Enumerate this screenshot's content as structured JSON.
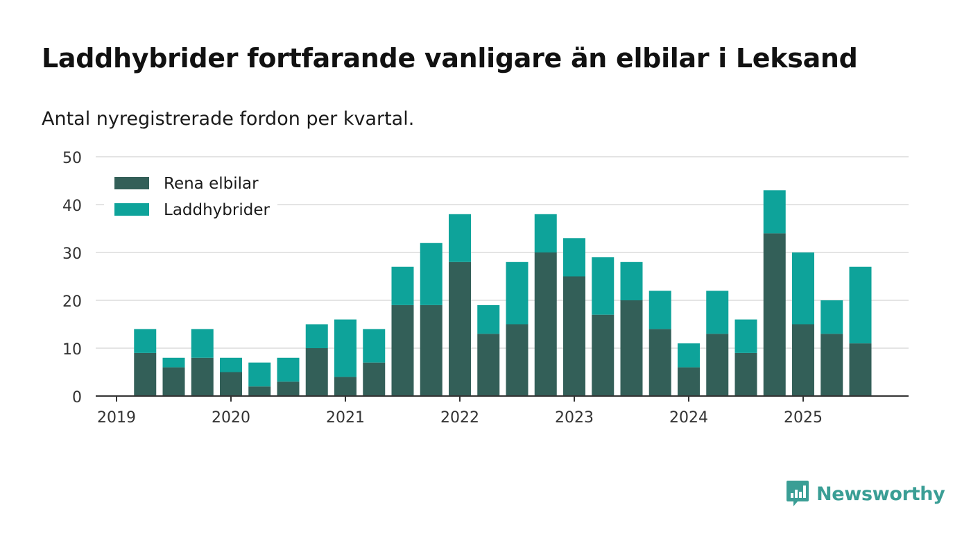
{
  "title": "Laddhybrider fortfarande vanligare än elbilar i Leksand",
  "subtitle": "Antal nyregistrerade fordon per kvartal.",
  "brand": "Newsworthy",
  "colors": {
    "rena_elbilar": "#335f58",
    "laddhybrider": "#0ea39a",
    "brand": "#3a9e95"
  },
  "chart_data": {
    "type": "bar",
    "stacked": true,
    "title": "Laddhybrider fortfarande vanligare än elbilar i Leksand",
    "subtitle": "Antal nyregistrerade fordon per kvartal.",
    "xlabel": "",
    "ylabel": "",
    "ylim": [
      0,
      50
    ],
    "yticks": [
      0,
      10,
      20,
      30,
      40,
      50
    ],
    "grid": true,
    "legend_position": "top-left",
    "x_tick_labels": [
      "2019",
      "2020",
      "2021",
      "2022",
      "2023",
      "2024",
      "2025"
    ],
    "categories": [
      "2019 Q2",
      "2019 Q3",
      "2019 Q4",
      "2020 Q1",
      "2020 Q2",
      "2020 Q3",
      "2020 Q4",
      "2021 Q1",
      "2021 Q2",
      "2021 Q3",
      "2021 Q4",
      "2022 Q1",
      "2022 Q2",
      "2022 Q3",
      "2022 Q4",
      "2023 Q1",
      "2023 Q2",
      "2023 Q3",
      "2023 Q4",
      "2024 Q1",
      "2024 Q2",
      "2024 Q3",
      "2024 Q4",
      "2025 Q1",
      "2025 Q2",
      "2025 Q3"
    ],
    "series": [
      {
        "name": "Rena elbilar",
        "values": [
          9,
          6,
          8,
          5,
          2,
          3,
          10,
          4,
          7,
          19,
          19,
          28,
          13,
          15,
          30,
          25,
          17,
          20,
          14,
          6,
          13,
          9,
          34,
          15,
          13,
          11
        ]
      },
      {
        "name": "Laddhybrider",
        "values": [
          5,
          2,
          6,
          3,
          5,
          5,
          5,
          12,
          7,
          8,
          13,
          10,
          6,
          13,
          8,
          8,
          12,
          8,
          8,
          5,
          9,
          7,
          9,
          15,
          7,
          16
        ]
      }
    ]
  }
}
